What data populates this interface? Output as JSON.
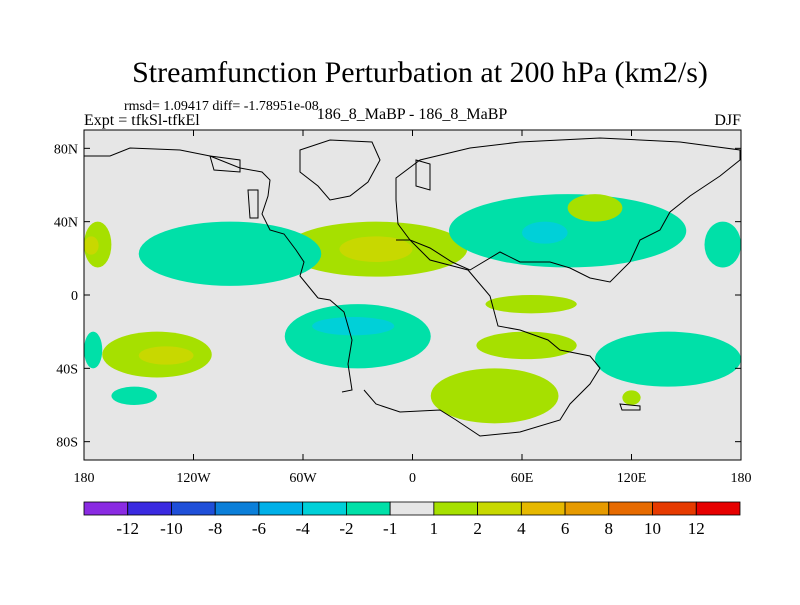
{
  "chart_data": {
    "type": "heatmap",
    "title": "Streamfunction Perturbation at 200 hPa (km2/s)",
    "stats": "rmsd= 1.09417 diff= -1.78951e-08",
    "case_label": "186_8_MaBP - 186_8_MaBP",
    "experiment_label": "Expt = tfkSl-tfkEl",
    "season": "DJF",
    "x_range": [
      -180,
      180
    ],
    "y_range": [
      -90,
      90
    ],
    "x_ticks": [
      {
        "value": -180,
        "label": "180"
      },
      {
        "value": -120,
        "label": "120W"
      },
      {
        "value": -60,
        "label": "60W"
      },
      {
        "value": 0,
        "label": "0"
      },
      {
        "value": 60,
        "label": "60E"
      },
      {
        "value": 120,
        "label": "120E"
      },
      {
        "value": 180,
        "label": "180"
      }
    ],
    "y_ticks": [
      {
        "value": 80,
        "label": "80N"
      },
      {
        "value": 40,
        "label": "40N"
      },
      {
        "value": 0,
        "label": "0"
      },
      {
        "value": -40,
        "label": "40S"
      },
      {
        "value": -80,
        "label": "80S"
      }
    ],
    "colorbar": {
      "colors": [
        "#8a2be2",
        "#3a2ae0",
        "#1f4fd8",
        "#0b7fd9",
        "#00b0e8",
        "#00d0d8",
        "#00e0a8",
        "#e6e6e6",
        "#a6e000",
        "#c8d800",
        "#e6b800",
        "#e69a00",
        "#e66a00",
        "#e63a00",
        "#e60000"
      ],
      "labels": [
        "-12",
        "-10",
        "-8",
        "-6",
        "-4",
        "-2",
        "-1",
        "1",
        "2",
        "4",
        "6",
        "8",
        "10",
        "12"
      ]
    },
    "contour_regions": [
      {
        "name": "pacific-sh-positive",
        "fill": "#a6e000",
        "lon": [
          -170,
          -110
        ],
        "lat": [
          -45,
          -20
        ]
      },
      {
        "name": "pacific-sh-core",
        "fill": "#c8d800",
        "lon": [
          -150,
          -120
        ],
        "lat": [
          -38,
          -28
        ]
      },
      {
        "name": "atlantic-nh-positive",
        "fill": "#a6e000",
        "lon": [
          -70,
          30
        ],
        "lat": [
          10,
          40
        ]
      },
      {
        "name": "atlantic-nh-core",
        "fill": "#c8d800",
        "lon": [
          -40,
          0
        ],
        "lat": [
          18,
          32
        ]
      },
      {
        "name": "asia-nh-negative",
        "fill": "#00e0a8",
        "lon": [
          20,
          150
        ],
        "lat": [
          15,
          55
        ]
      },
      {
        "name": "asia-nh-core",
        "fill": "#00d0d8",
        "lon": [
          60,
          85
        ],
        "lat": [
          28,
          40
        ]
      },
      {
        "name": "southern-africa-positive",
        "fill": "#a6e000",
        "lon": [
          10,
          80
        ],
        "lat": [
          -70,
          -40
        ]
      },
      {
        "name": "indian-positive",
        "fill": "#a6e000",
        "lon": [
          40,
          90
        ],
        "lat": [
          -10,
          0
        ]
      },
      {
        "name": "eastern-pacific-negative",
        "fill": "#00e0a8",
        "lon": [
          -150,
          -50
        ],
        "lat": [
          5,
          40
        ]
      },
      {
        "name": "south-atlantic-negative",
        "fill": "#00e0a8",
        "lon": [
          -70,
          10
        ],
        "lat": [
          -40,
          -5
        ]
      },
      {
        "name": "south-atlantic-core",
        "fill": "#00d0d8",
        "lon": [
          -55,
          -10
        ],
        "lat": [
          -22,
          -12
        ]
      },
      {
        "name": "australia-negative",
        "fill": "#00e0a8",
        "lon": [
          100,
          180
        ],
        "lat": [
          -50,
          -20
        ]
      },
      {
        "name": "dateline-nh-positive",
        "fill": "#a6e000",
        "lon": [
          -180,
          -165
        ],
        "lat": [
          15,
          40
        ]
      },
      {
        "name": "dateline-nh-core",
        "fill": "#c8d800",
        "lon": [
          -180,
          -172
        ],
        "lat": [
          22,
          32
        ]
      },
      {
        "name": "dateline-sh-negative",
        "fill": "#00e0a8",
        "lon": [
          -180,
          -170
        ],
        "lat": [
          -40,
          -20
        ]
      },
      {
        "name": "far-sh-negative",
        "fill": "#00e0a8",
        "lon": [
          -165,
          -140
        ],
        "lat": [
          -60,
          -50
        ]
      },
      {
        "name": "east-asia-positive",
        "fill": "#a6e000",
        "lon": [
          85,
          115
        ],
        "lat": [
          40,
          55
        ]
      },
      {
        "name": "east-indian-positive",
        "fill": "#a6e000",
        "lon": [
          35,
          90
        ],
        "lat": [
          -35,
          -20
        ]
      },
      {
        "name": "dateline-east-negative",
        "fill": "#00e0a8",
        "lon": [
          160,
          180
        ],
        "lat": [
          15,
          40
        ]
      },
      {
        "name": "small-sh-island",
        "fill": "#a6e000",
        "lon": [
          115,
          125
        ],
        "lat": [
          -60,
          -52
        ]
      }
    ]
  }
}
